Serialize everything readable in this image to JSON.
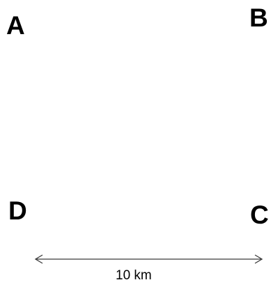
{
  "corners": {
    "a": "A",
    "b": "B",
    "c": "C",
    "d": "D"
  },
  "distance": {
    "label": "10 km"
  },
  "colors": {
    "text": "#000000",
    "arrow": "#3a3a3a",
    "background": "#ffffff"
  }
}
